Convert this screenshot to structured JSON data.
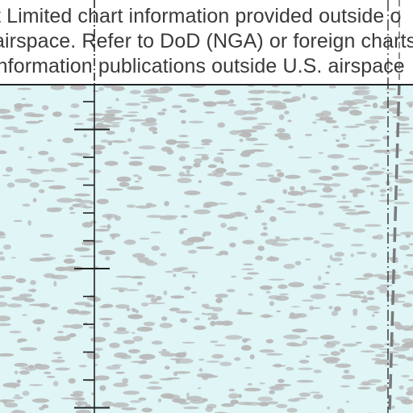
{
  "notice": {
    "line1": "t Limited chart information provided outside o",
    "line2": "airspace. Refer to DoD (NGA) or foreign charts",
    "line3": "information publications outside U.S. airspace"
  },
  "colors": {
    "water": "#dff5f6",
    "speckle": "#b9b9b9",
    "line": "#222222",
    "boundary_dash": "#7a7a7a"
  }
}
